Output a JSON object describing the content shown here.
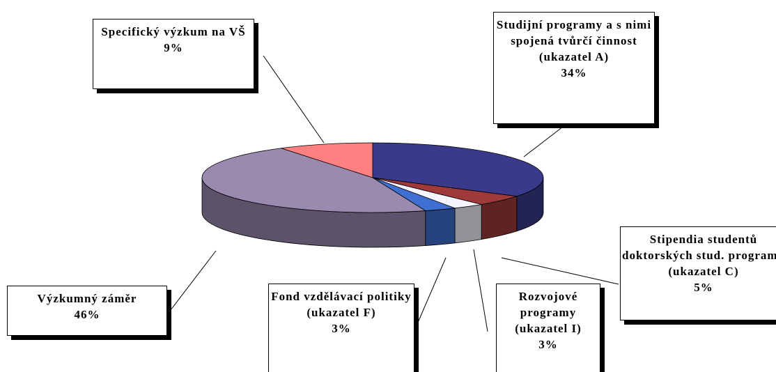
{
  "chart_data": {
    "type": "pie",
    "categories": [
      "Studijní programy a s nimi spojená tvůrčí činnost (ukazatel A)",
      "Stipendia studentů doktorských stud. programů (ukazatel C)",
      "Rozvojové programy (ukazatel I)",
      "Fond vzdělávací politiky (ukazatel F)",
      "Výzkumný záměr",
      "Specifický výzkum na VŠ"
    ],
    "values": [
      34,
      5,
      3,
      3,
      46,
      9
    ],
    "value_labels": [
      "34%",
      "5%",
      "3%",
      "3%",
      "46%",
      "9%"
    ],
    "colors": [
      "#3a3a8c",
      "#a03a3a",
      "#f4f4ff",
      "#3f6fd0",
      "#9a8ab0",
      "#ff8080"
    ]
  }
}
